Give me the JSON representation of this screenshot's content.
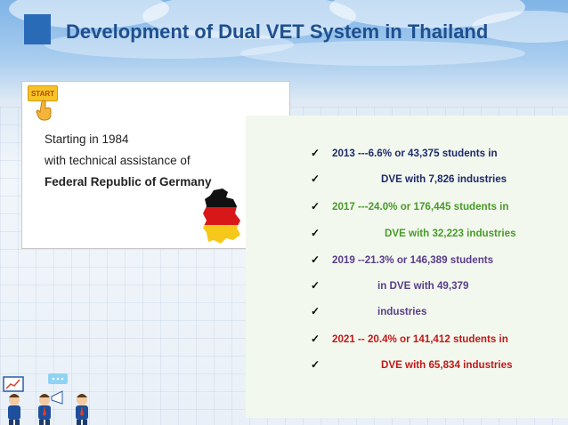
{
  "title": "Development of Dual VET System in Thailand",
  "start_label": "START",
  "intro": {
    "line1": "Starting in 1984",
    "line2": "with technical assistance of",
    "line3": "Federal Republic of Germany"
  },
  "stats": [
    {
      "text": "2013  ---6.6% or 43,375 students in",
      "color": "#1f2a6b"
    },
    {
      "text": "DVE with 7,826 industries",
      "color": "#1f2a6b"
    },
    {
      "text": "2017  ---24.0% or 176,445 students in",
      "color": "#4a9a2a"
    },
    {
      "text": "DVE with 32,223 industries",
      "color": "#4a9a2a"
    },
    {
      "text": "2019 --21.3% or 146,389 students",
      "color": "#5a3c8a"
    },
    {
      "text": "in DVE with 49,379",
      "color": "#5a3c8a"
    },
    {
      "text": "industries",
      "color": "#5a3c8a"
    },
    {
      "text": "2021 -- 20.4% or 141,412 students in",
      "color": "#c01818"
    },
    {
      "text": "DVE with 65,834 industries",
      "color": "#c01818"
    }
  ],
  "check_glyph": "✓",
  "colors": {
    "title": "#1f4f8f",
    "title_square": "#2a6bb8",
    "panel_bg": "#f2f8ee"
  },
  "icons": [
    "start-button",
    "hand-pointer-icon",
    "germany-flag-map-icon",
    "business-people-icon"
  ]
}
